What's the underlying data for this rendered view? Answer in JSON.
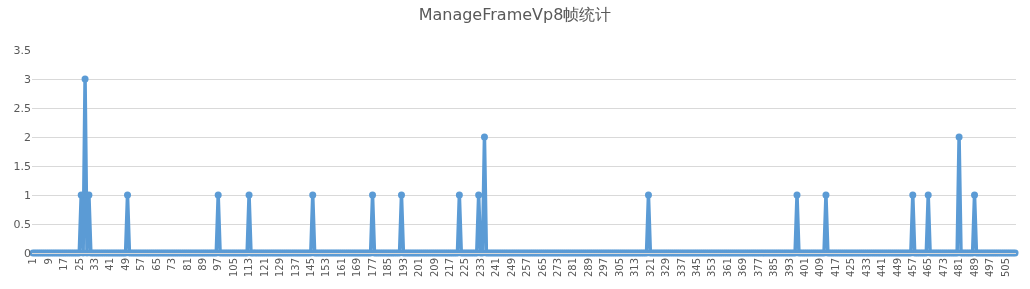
{
  "chart_data": {
    "type": "line",
    "title": "ManageFrameVp8帧统计",
    "categories": [
      "1",
      null,
      null,
      null,
      null,
      null,
      null,
      null,
      "9",
      null,
      null,
      null,
      null,
      null,
      null,
      null,
      "17",
      null,
      null,
      null,
      null,
      null,
      null,
      null,
      "25",
      null,
      null,
      null,
      null,
      null,
      null,
      null,
      "33",
      null,
      null,
      null,
      null,
      null,
      null,
      null,
      "41",
      null,
      null,
      null,
      null,
      null,
      null,
      null,
      "49",
      null,
      null,
      null,
      null,
      null,
      null,
      null,
      "57",
      null,
      null,
      null,
      null,
      null,
      null,
      null,
      "65",
      null,
      null,
      null,
      null,
      null,
      null,
      null,
      "73",
      null,
      null,
      null,
      null,
      null,
      null,
      null,
      "81",
      null,
      null,
      null,
      null,
      null,
      null,
      null,
      "89",
      null,
      null,
      null,
      null,
      null,
      null,
      null,
      "97",
      null,
      null,
      null,
      null,
      null,
      null,
      null,
      "105",
      null,
      null,
      null,
      null,
      null,
      null,
      null,
      "113",
      null,
      null,
      null,
      null,
      null,
      null,
      null,
      "121",
      null,
      null,
      null,
      null,
      null,
      null,
      null,
      "129",
      null,
      null,
      null,
      null,
      null,
      null,
      null,
      "137",
      null,
      null,
      null,
      null,
      null,
      null,
      null,
      "145",
      null,
      null,
      null,
      null,
      null,
      null,
      null,
      "153",
      null,
      null,
      null,
      null,
      null,
      null,
      null,
      "161",
      null,
      null,
      null,
      null,
      null,
      null,
      null,
      "169",
      null,
      null,
      null,
      null,
      null,
      null,
      null,
      "177",
      null,
      null,
      null,
      null,
      null,
      null,
      null,
      "185",
      null,
      null,
      null,
      null,
      null,
      null,
      null,
      "193",
      null,
      null,
      null,
      null,
      null,
      null,
      null,
      "201",
      null,
      null,
      null,
      null,
      null,
      null,
      null,
      "209",
      null,
      null,
      null,
      null,
      null,
      null,
      null,
      "217",
      null,
      null,
      null,
      null,
      null,
      null,
      null,
      "225",
      null,
      null,
      null,
      null,
      null,
      null,
      null,
      "233",
      null,
      null,
      null,
      null,
      null,
      null,
      null,
      "241",
      null,
      null,
      null,
      null,
      null,
      null,
      null,
      "249",
      null,
      null,
      null,
      null,
      null,
      null,
      null,
      "257",
      null,
      null,
      null,
      null,
      null,
      null,
      null,
      "265",
      null,
      null,
      null,
      null,
      null,
      null,
      null,
      "273",
      null,
      null,
      null,
      null,
      null,
      null,
      null,
      "281",
      null,
      null,
      null,
      null,
      null,
      null,
      null,
      "289",
      null,
      null,
      null,
      null,
      null,
      null,
      null,
      "297",
      null,
      null,
      null,
      null,
      null,
      null,
      null,
      "305",
      null,
      null,
      null,
      null,
      null,
      null,
      null,
      "313",
      null,
      null,
      null,
      null,
      null,
      null,
      null,
      "321",
      null,
      null,
      null,
      null,
      null,
      null,
      null,
      "329",
      null,
      null,
      null,
      null,
      null,
      null,
      null,
      "337",
      null,
      null,
      null,
      null,
      null,
      null,
      null,
      "345",
      null,
      null,
      null,
      null,
      null,
      null,
      null,
      "353",
      null,
      null,
      null,
      null,
      null,
      null,
      null,
      "361",
      null,
      null,
      null,
      null,
      null,
      null,
      null,
      "369",
      null,
      null,
      null,
      null,
      null,
      null,
      null,
      "377",
      null,
      null,
      null,
      null,
      null,
      null,
      null,
      "385",
      null,
      null,
      null,
      null,
      null,
      null,
      null,
      "393",
      null,
      null,
      null,
      null,
      null,
      null,
      null,
      "401",
      null,
      null,
      null,
      null,
      null,
      null,
      null,
      "409",
      null,
      null,
      null,
      null,
      null,
      null,
      null,
      "417",
      null,
      null,
      null,
      null,
      null,
      null,
      null,
      "425",
      null,
      null,
      null,
      null,
      null,
      null,
      null,
      "433",
      null,
      null,
      null,
      null,
      null,
      null,
      null,
      "441",
      null,
      null,
      null,
      null,
      null,
      null,
      null,
      "449",
      null,
      null,
      null,
      null,
      null,
      null,
      null,
      "457",
      null,
      null,
      null,
      null,
      null,
      null,
      null,
      "465",
      null,
      null,
      null,
      null,
      null,
      null,
      null,
      "473",
      null,
      null,
      null,
      null,
      null,
      null,
      null,
      "481",
      null,
      null,
      null,
      null,
      null,
      null,
      null,
      "489",
      null,
      null,
      null,
      null,
      null,
      null,
      null,
      "497",
      null,
      null,
      null,
      null,
      null,
      null,
      null,
      "505",
      null,
      null,
      null,
      null,
      null
    ],
    "series": [
      {
        "color": "#5b9bd5",
        "values": [
          0,
          0,
          0,
          0,
          0,
          0,
          0,
          0,
          0,
          0,
          0,
          0,
          0,
          0,
          0,
          0,
          0,
          0,
          0,
          0,
          0,
          0,
          0,
          0,
          0,
          1,
          0,
          3,
          0,
          1,
          0,
          0,
          0,
          0,
          0,
          0,
          0,
          0,
          0,
          0,
          0,
          0,
          0,
          0,
          0,
          0,
          0,
          0,
          0,
          1,
          0,
          0,
          0,
          0,
          0,
          0,
          0,
          0,
          0,
          0,
          0,
          0,
          0,
          0,
          0,
          0,
          0,
          0,
          0,
          0,
          0,
          0,
          0,
          0,
          0,
          0,
          0,
          0,
          0,
          0,
          0,
          0,
          0,
          0,
          0,
          0,
          0,
          0,
          0,
          0,
          0,
          0,
          0,
          0,
          0,
          0,
          1,
          0,
          0,
          0,
          0,
          0,
          0,
          0,
          0,
          0,
          0,
          0,
          0,
          0,
          0,
          0,
          1,
          0,
          0,
          0,
          0,
          0,
          0,
          0,
          0,
          0,
          0,
          0,
          0,
          0,
          0,
          0,
          0,
          0,
          0,
          0,
          0,
          0,
          0,
          0,
          0,
          0,
          0,
          0,
          0,
          0,
          0,
          0,
          0,
          1,
          0,
          0,
          0,
          0,
          0,
          0,
          0,
          0,
          0,
          0,
          0,
          0,
          0,
          0,
          0,
          0,
          0,
          0,
          0,
          0,
          0,
          0,
          0,
          0,
          0,
          0,
          0,
          0,
          0,
          0,
          1,
          0,
          0,
          0,
          0,
          0,
          0,
          0,
          0,
          0,
          0,
          0,
          0,
          0,
          0,
          1,
          0,
          0,
          0,
          0,
          0,
          0,
          0,
          0,
          0,
          0,
          0,
          0,
          0,
          0,
          0,
          0,
          0,
          0,
          0,
          0,
          0,
          0,
          0,
          0,
          0,
          0,
          0,
          0,
          0,
          1,
          0,
          0,
          0,
          0,
          0,
          0,
          0,
          0,
          0,
          1,
          0,
          0,
          2,
          0,
          0,
          0,
          0,
          0,
          0,
          0,
          0,
          0,
          0,
          0,
          0,
          0,
          0,
          0,
          0,
          0,
          0,
          0,
          0,
          0,
          0,
          0,
          0,
          0,
          0,
          0,
          0,
          0,
          0,
          0,
          0,
          0,
          0,
          0,
          0,
          0,
          0,
          0,
          0,
          0,
          0,
          0,
          0,
          0,
          0,
          0,
          0,
          0,
          0,
          0,
          0,
          0,
          0,
          0,
          0,
          0,
          0,
          0,
          0,
          0,
          0,
          0,
          0,
          0,
          0,
          0,
          0,
          0,
          0,
          0,
          0,
          0,
          0,
          0,
          0,
          0,
          0,
          0,
          0,
          0,
          0,
          0,
          0,
          1,
          0,
          0,
          0,
          0,
          0,
          0,
          0,
          0,
          0,
          0,
          0,
          0,
          0,
          0,
          0,
          0,
          0,
          0,
          0,
          0,
          0,
          0,
          0,
          0,
          0,
          0,
          0,
          0,
          0,
          0,
          0,
          0,
          0,
          0,
          0,
          0,
          0,
          0,
          0,
          0,
          0,
          0,
          0,
          0,
          0,
          0,
          0,
          0,
          0,
          0,
          0,
          0,
          0,
          0,
          0,
          0,
          0,
          0,
          0,
          0,
          0,
          0,
          0,
          0,
          0,
          0,
          0,
          0,
          0,
          0,
          0,
          0,
          0,
          0,
          0,
          0,
          1,
          0,
          0,
          0,
          0,
          0,
          0,
          0,
          0,
          0,
          0,
          0,
          0,
          0,
          0,
          1,
          0,
          0,
          0,
          0,
          0,
          0,
          0,
          0,
          0,
          0,
          0,
          0,
          0,
          0,
          0,
          0,
          0,
          0,
          0,
          0,
          0,
          0,
          0,
          0,
          0,
          0,
          0,
          0,
          0,
          0,
          0,
          0,
          0,
          0,
          0,
          0,
          0,
          0,
          0,
          0,
          0,
          0,
          0,
          0,
          1,
          0,
          0,
          0,
          0,
          0,
          0,
          0,
          1,
          0,
          0,
          0,
          0,
          0,
          0,
          0,
          0,
          0,
          0,
          0,
          0,
          0,
          0,
          0,
          2,
          0,
          0,
          0,
          0,
          0,
          0,
          0,
          1,
          0,
          0,
          0,
          0,
          0,
          0,
          0,
          0,
          0,
          0,
          0,
          0,
          0,
          0,
          0,
          0,
          0,
          0,
          0,
          0,
          0
        ]
      }
    ],
    "ylim": [
      0,
      3.5
    ],
    "yticks": [
      0,
      0.5,
      1,
      1.5,
      2,
      2.5,
      3,
      3.5
    ],
    "grid": "y",
    "legend": false,
    "marker": "circle",
    "line_style": "solid"
  }
}
